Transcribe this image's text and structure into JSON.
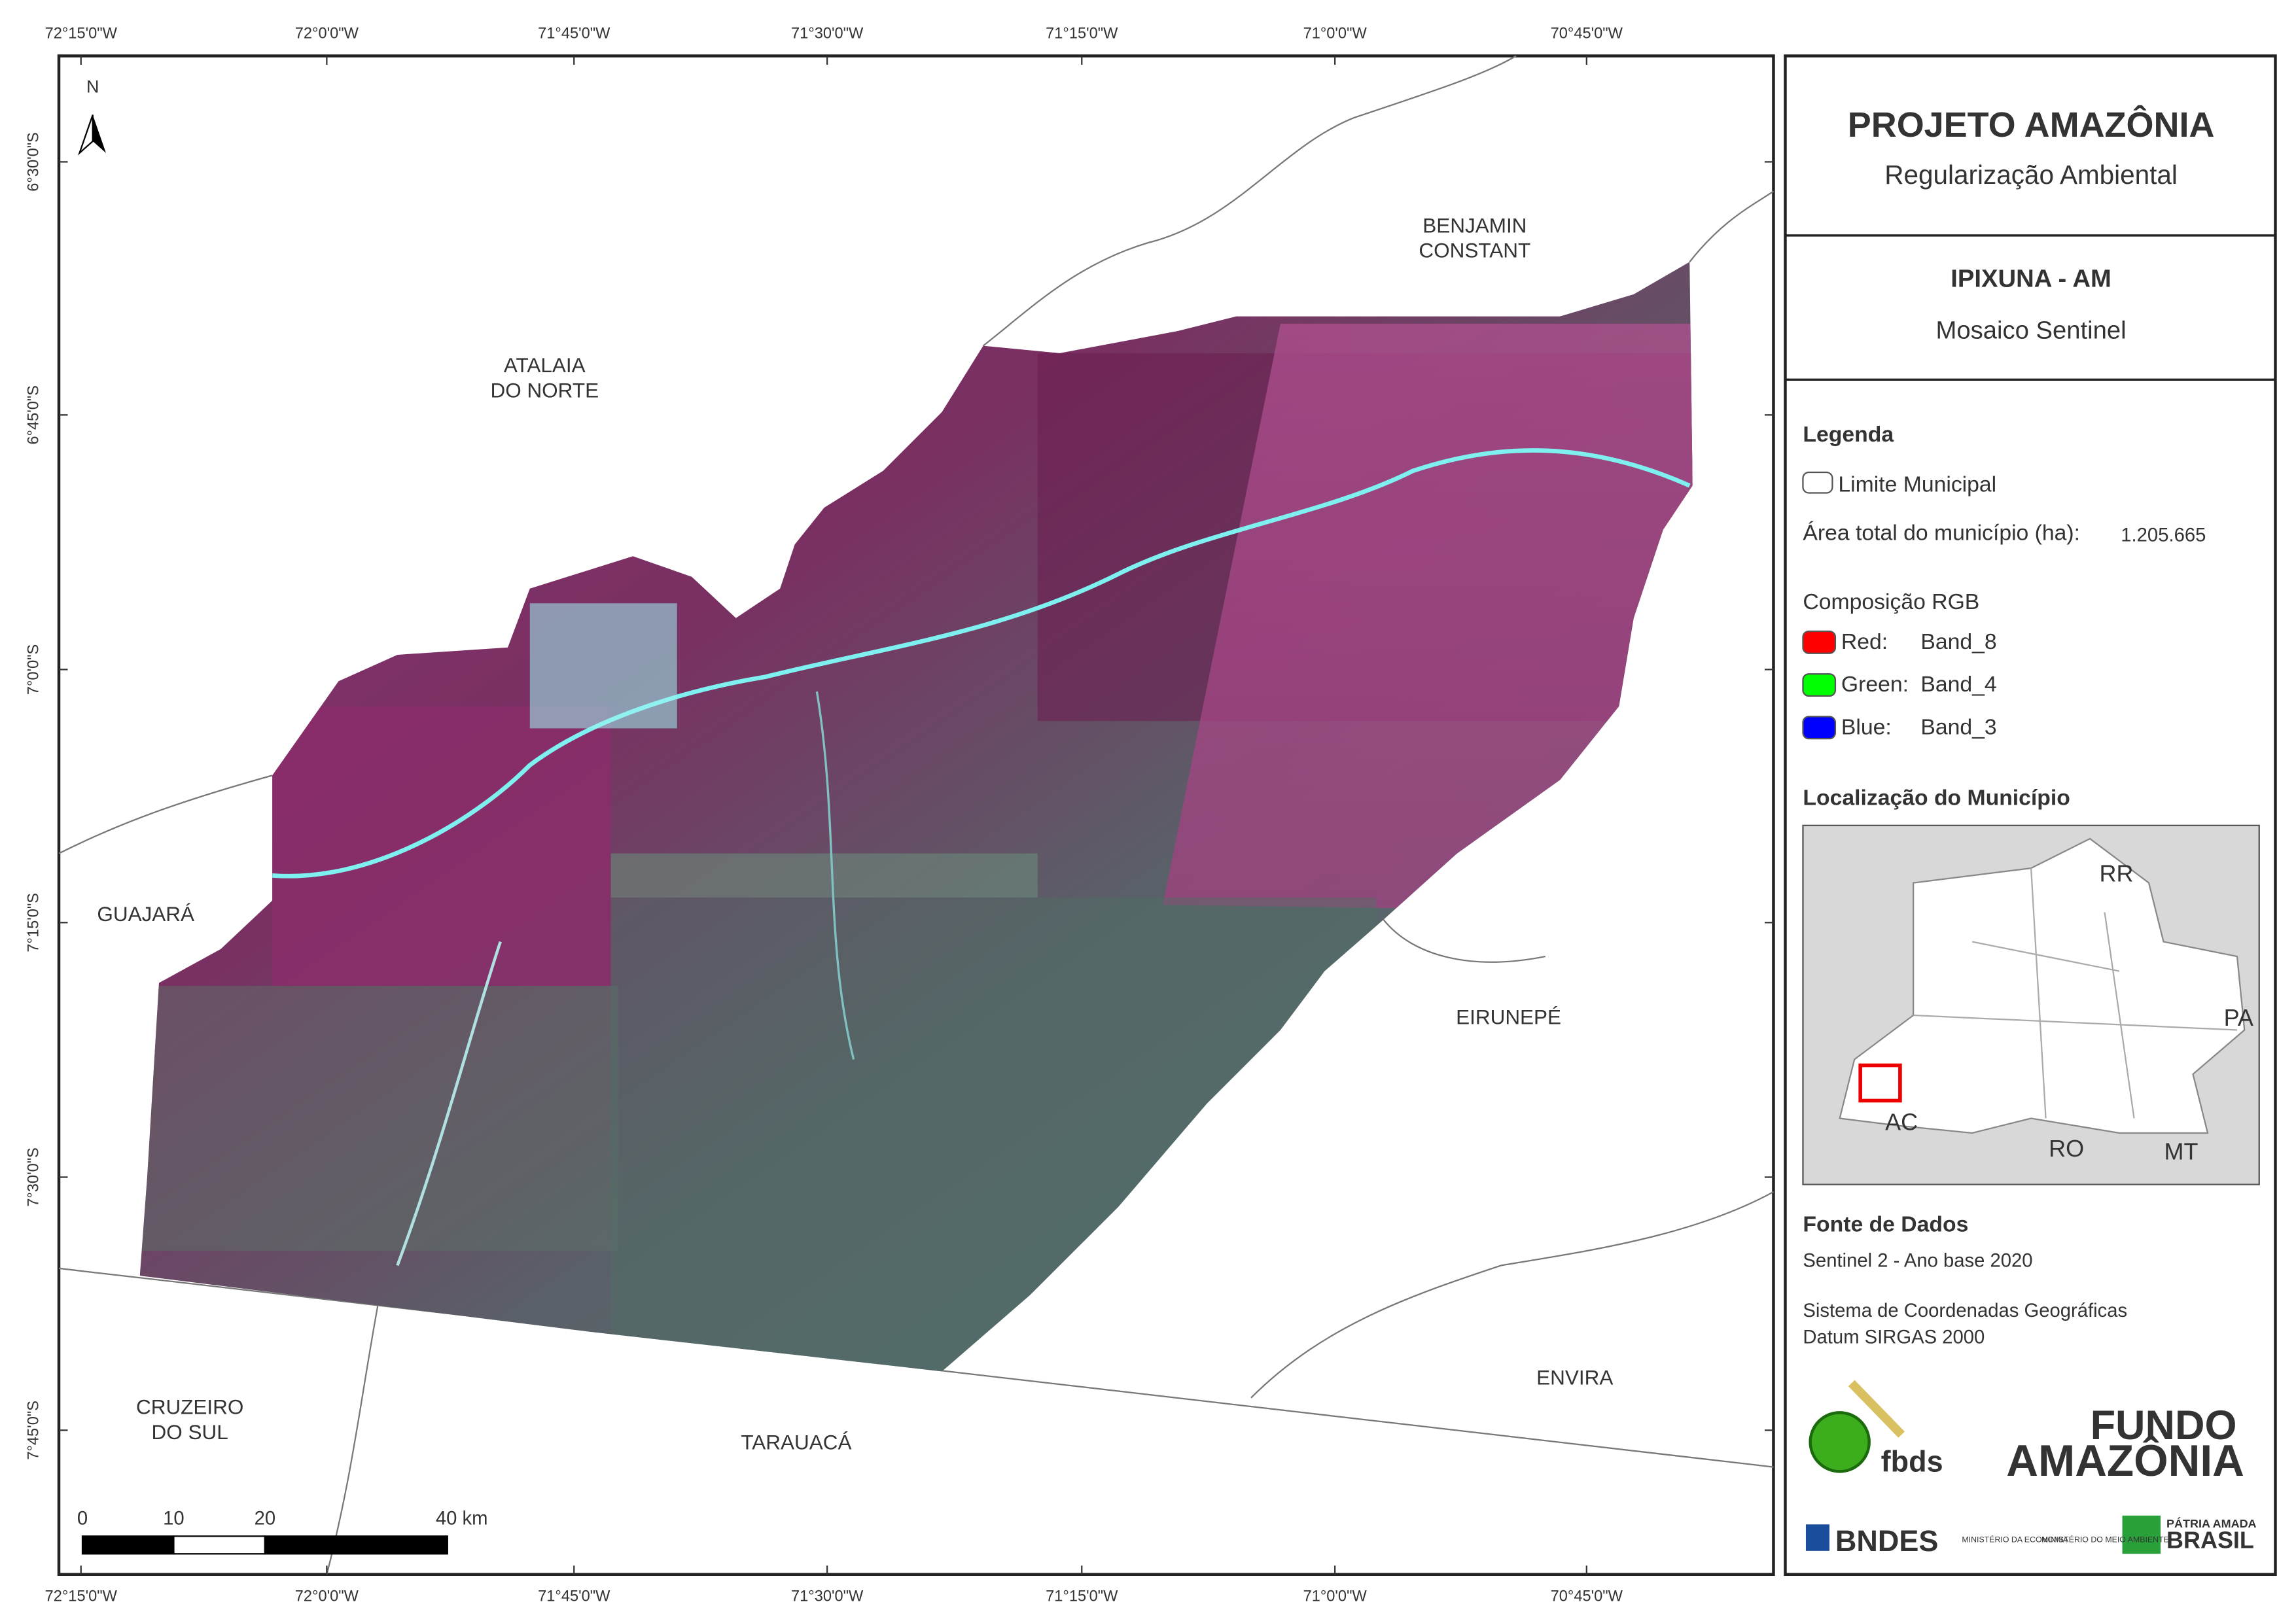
{
  "map": {
    "lon_ticks": [
      "72°15'0\"W",
      "72°0'0\"W",
      "71°45'0\"W",
      "71°30'0\"W",
      "71°15'0\"W",
      "71°0'0\"W",
      "70°45'0\"W"
    ],
    "lat_ticks": [
      "6°30'0\"S",
      "6°45'0\"S",
      "7°0'0\"S",
      "7°15'0\"S",
      "7°30'0\"S",
      "7°45'0\"S"
    ],
    "north": "N",
    "places": [
      {
        "lines": [
          "ATALAIA",
          "DO NORTE"
        ]
      },
      {
        "lines": [
          "BENJAMIN",
          "CONSTANT"
        ]
      },
      {
        "lines": [
          "GUAJARÁ"
        ]
      },
      {
        "lines": [
          "EIRUNEPÉ"
        ]
      },
      {
        "lines": [
          "ENVIRA"
        ]
      },
      {
        "lines": [
          "CRUZEIRO",
          "DO SUL"
        ]
      },
      {
        "lines": [
          "TARAUACÁ"
        ]
      }
    ],
    "scale_labels": [
      "0",
      "10",
      "20",
      "40 km"
    ]
  },
  "panel": {
    "title": "PROJETO AMAZÔNIA",
    "subtitle": "Regularização Ambiental",
    "municipality": "IPIXUNA - AM",
    "mosaic": "Mosaico Sentinel",
    "legend_title": "Legenda",
    "limit_label": "Limite Municipal",
    "area_label": "Área total do município (ha):",
    "area_value": "1.205.665",
    "rgb_title": "Composição RGB",
    "bands": [
      {
        "label": "Red:",
        "band": "Band_8",
        "color": "#ff0000"
      },
      {
        "label": "Green:",
        "band": "Band_4",
        "color": "#00ff00"
      },
      {
        "label": "Blue:",
        "band": "Band_3",
        "color": "#0000ff"
      }
    ],
    "location_title": "Localização do Município",
    "states": [
      "RR",
      "PA",
      "AC",
      "RO",
      "MT"
    ],
    "source_title": "Fonte de Dados",
    "source": "Sentinel 2 - Ano base 2020",
    "crs": "Sistema de Coordenadas Geográficas",
    "datum": "Datum SIRGAS 2000",
    "logos": [
      "fbds",
      "FUNDO",
      "AMAZÔNIA",
      "BNDES",
      "MINISTÉRIO DA ECONOMIA",
      "MINISTÉRIO DO MEIO AMBIENTE",
      "PÁTRIA AMADA",
      "BRASIL"
    ]
  }
}
